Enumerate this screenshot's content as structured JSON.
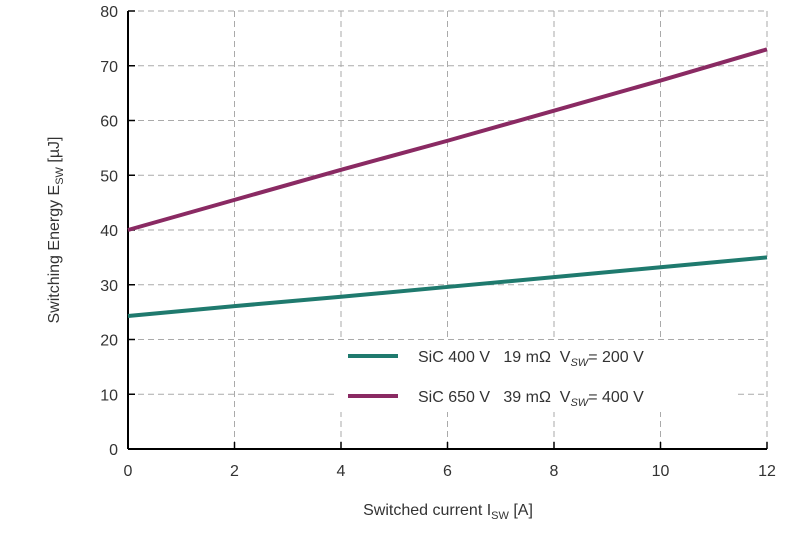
{
  "chart_data": {
    "type": "line",
    "title": "",
    "xlabel": {
      "main": "Switched current I",
      "sub": "SW",
      "unit": " [A]"
    },
    "ylabel": {
      "main": "Switching Energy E",
      "sub": "SW",
      "unit": " [µJ]"
    },
    "xlim": [
      0,
      12
    ],
    "ylim": [
      0,
      80
    ],
    "xticks": [
      0,
      2,
      4,
      6,
      8,
      10,
      12
    ],
    "yticks": [
      0,
      10,
      20,
      30,
      40,
      50,
      60,
      70,
      80
    ],
    "grid": true,
    "legend_position": "bottom-right",
    "series": [
      {
        "name": "SiC 400 V   19 mΩ  V",
        "name_sub": "SW",
        "name_tail": "= 200 V",
        "color": "#1f7a6e",
        "x": [
          0,
          2,
          4,
          6,
          8,
          10,
          12
        ],
        "y": [
          24.3,
          26.1,
          27.8,
          29.6,
          31.4,
          33.2,
          35.0
        ]
      },
      {
        "name": "SiC 650 V   39 mΩ  V",
        "name_sub": "SW",
        "name_tail": "= 400 V",
        "color": "#8a2a63",
        "x": [
          0,
          2,
          4,
          6,
          8,
          10,
          12
        ],
        "y": [
          40.0,
          45.5,
          51.0,
          56.3,
          61.8,
          67.3,
          73.0
        ]
      }
    ]
  }
}
